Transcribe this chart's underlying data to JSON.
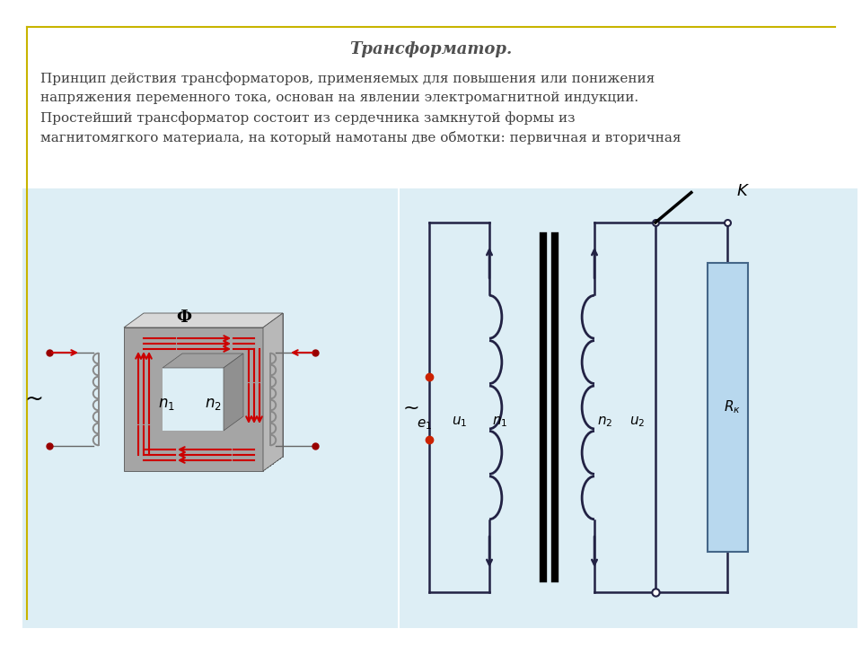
{
  "title": "Трансформатор.",
  "body_text": "Принцип действия трансформаторов, применяемых для повышения или понижения\nнапряжения переменного тока, основан на явлении электромагнитной индукции.\nПростейший трансформатор состоит из сердечника замкнутой формы из\nмагнитомягкого материала, на который намотаны две обмотки: первичная и вторичная",
  "background_color": "#ffffff",
  "border_color": "#c8b400",
  "diagram_bg": "#ddeef5",
  "text_color": "#404040",
  "title_color": "#505050",
  "circuit_color": "#222244",
  "resistor_fill": "#b8d8ee",
  "arrow_color": "#cc0000",
  "core_line": "#555555",
  "wire_color": "#555555"
}
